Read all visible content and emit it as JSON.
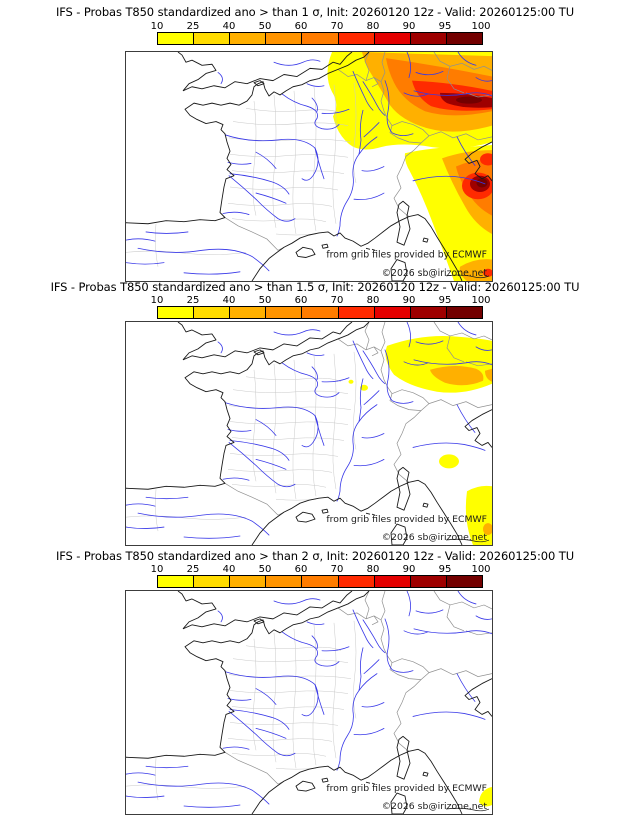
{
  "panels": [
    {
      "title": "IFS - Probas T850  standardized ano > than 1 σ, Init: 20260120 12z - Valid: 20260125:00 TU"
    },
    {
      "title": "IFS - Probas T850  standardized ano > than 1.5 σ, Init: 20260120 12z - Valid: 20260125:00 TU"
    },
    {
      "title": "IFS - Probas T850  standardized ano > than 2 σ, Init: 20260120 12z - Valid: 20260125:00 TU"
    }
  ],
  "colorbar": {
    "ticks": [
      "10",
      "25",
      "40",
      "50",
      "60",
      "70",
      "80",
      "90",
      "95",
      "100"
    ],
    "colors": [
      "#ffff00",
      "#ffdc00",
      "#ffb000",
      "#ff9400",
      "#ff7c00",
      "#ff2a00",
      "#e40000",
      "#9e0000",
      "#730000"
    ]
  },
  "map": {
    "credit_line1": "from grib files provided by ECMWF",
    "credit_line2": "©2026 sb@irizone.net"
  },
  "map_colors": {
    "coastline": "#1a1a1a",
    "country_border": "#909090",
    "department_border": "#c9c9c9",
    "river": "#3838e8",
    "frame": "#3c3c3c"
  },
  "chart_data": [
    {
      "type": "heatmap",
      "title": "IFS - Probas T850  standardized ano > than 1 σ, Init: 20260120 12z - Valid: 20260125:00 TU",
      "variable": "Probability that T850 standardized anomaly exceeds 1 sigma (%)",
      "threshold_sigma": 1,
      "colorbar_ticks": [
        10,
        25,
        40,
        50,
        60,
        70,
        80,
        90,
        95,
        100
      ],
      "colorbar_colors": [
        "#ffff00",
        "#ffdc00",
        "#ffb000",
        "#ff9400",
        "#ff7c00",
        "#ff2a00",
        "#e40000",
        "#9e0000",
        "#730000"
      ],
      "legend_position": "top",
      "region_of_map": "France / western Europe",
      "shaded_regions": [
        {
          "area": "northeast France, Benelux and Germany (upper-right of map)",
          "range_pct": [
            10,
            100
          ],
          "core": "dark red core 95-100 over southern Germany near right edge"
        },
        {
          "area": "northern / central Italy (lower-right of map)",
          "range_pct": [
            10,
            100
          ],
          "core": "dark red core 95-100 near Adriatic at right edge"
        },
        {
          "area": "bottom-right corner (central Italy)",
          "range_pct": [
            10,
            90
          ]
        },
        {
          "area": "rest of France, UK, Spain",
          "range_pct": [
            0,
            10
          ]
        }
      ]
    },
    {
      "type": "heatmap",
      "title": "IFS - Probas T850  standardized ano > than 1.5 σ, Init: 20260120 12z - Valid: 20260125:00 TU",
      "variable": "Probability that T850 standardized anomaly exceeds 1.5 sigma (%)",
      "threshold_sigma": 1.5,
      "colorbar_ticks": [
        10,
        25,
        40,
        50,
        60,
        70,
        80,
        90,
        95,
        100
      ],
      "colorbar_colors": [
        "#ffff00",
        "#ffdc00",
        "#ffb000",
        "#ff9400",
        "#ff7c00",
        "#ff2a00",
        "#e40000",
        "#9e0000",
        "#730000"
      ],
      "legend_position": "top",
      "region_of_map": "France / western Europe",
      "shaded_regions": [
        {
          "area": "southern Germany band (upper-right of map)",
          "range_pct": [
            10,
            60
          ],
          "core": "orange core 40-60 along Danube"
        },
        {
          "area": "small spot northern Italy",
          "range_pct": [
            10,
            25
          ]
        },
        {
          "area": "bottom-right corner (central Italy)",
          "range_pct": [
            10,
            50
          ]
        },
        {
          "area": "rest of map",
          "range_pct": [
            0,
            10
          ]
        }
      ]
    },
    {
      "type": "heatmap",
      "title": "IFS - Probas T850  standardized ano > than 2 σ, Init: 20260120 12z - Valid: 20260125:00 TU",
      "variable": "Probability that T850 standardized anomaly exceeds 2 sigma (%)",
      "threshold_sigma": 2,
      "colorbar_ticks": [
        10,
        25,
        40,
        50,
        60,
        70,
        80,
        90,
        95,
        100
      ],
      "colorbar_colors": [
        "#ffff00",
        "#ffdc00",
        "#ffb000",
        "#ff9400",
        "#ff7c00",
        "#ff2a00",
        "#e40000",
        "#9e0000",
        "#730000"
      ],
      "legend_position": "top",
      "region_of_map": "France / western Europe",
      "shaded_regions": [
        {
          "area": "tiny spot at bottom-right corner (central Italy)",
          "range_pct": [
            10,
            25
          ]
        },
        {
          "area": "rest of map",
          "range_pct": [
            0,
            10
          ]
        }
      ]
    }
  ]
}
